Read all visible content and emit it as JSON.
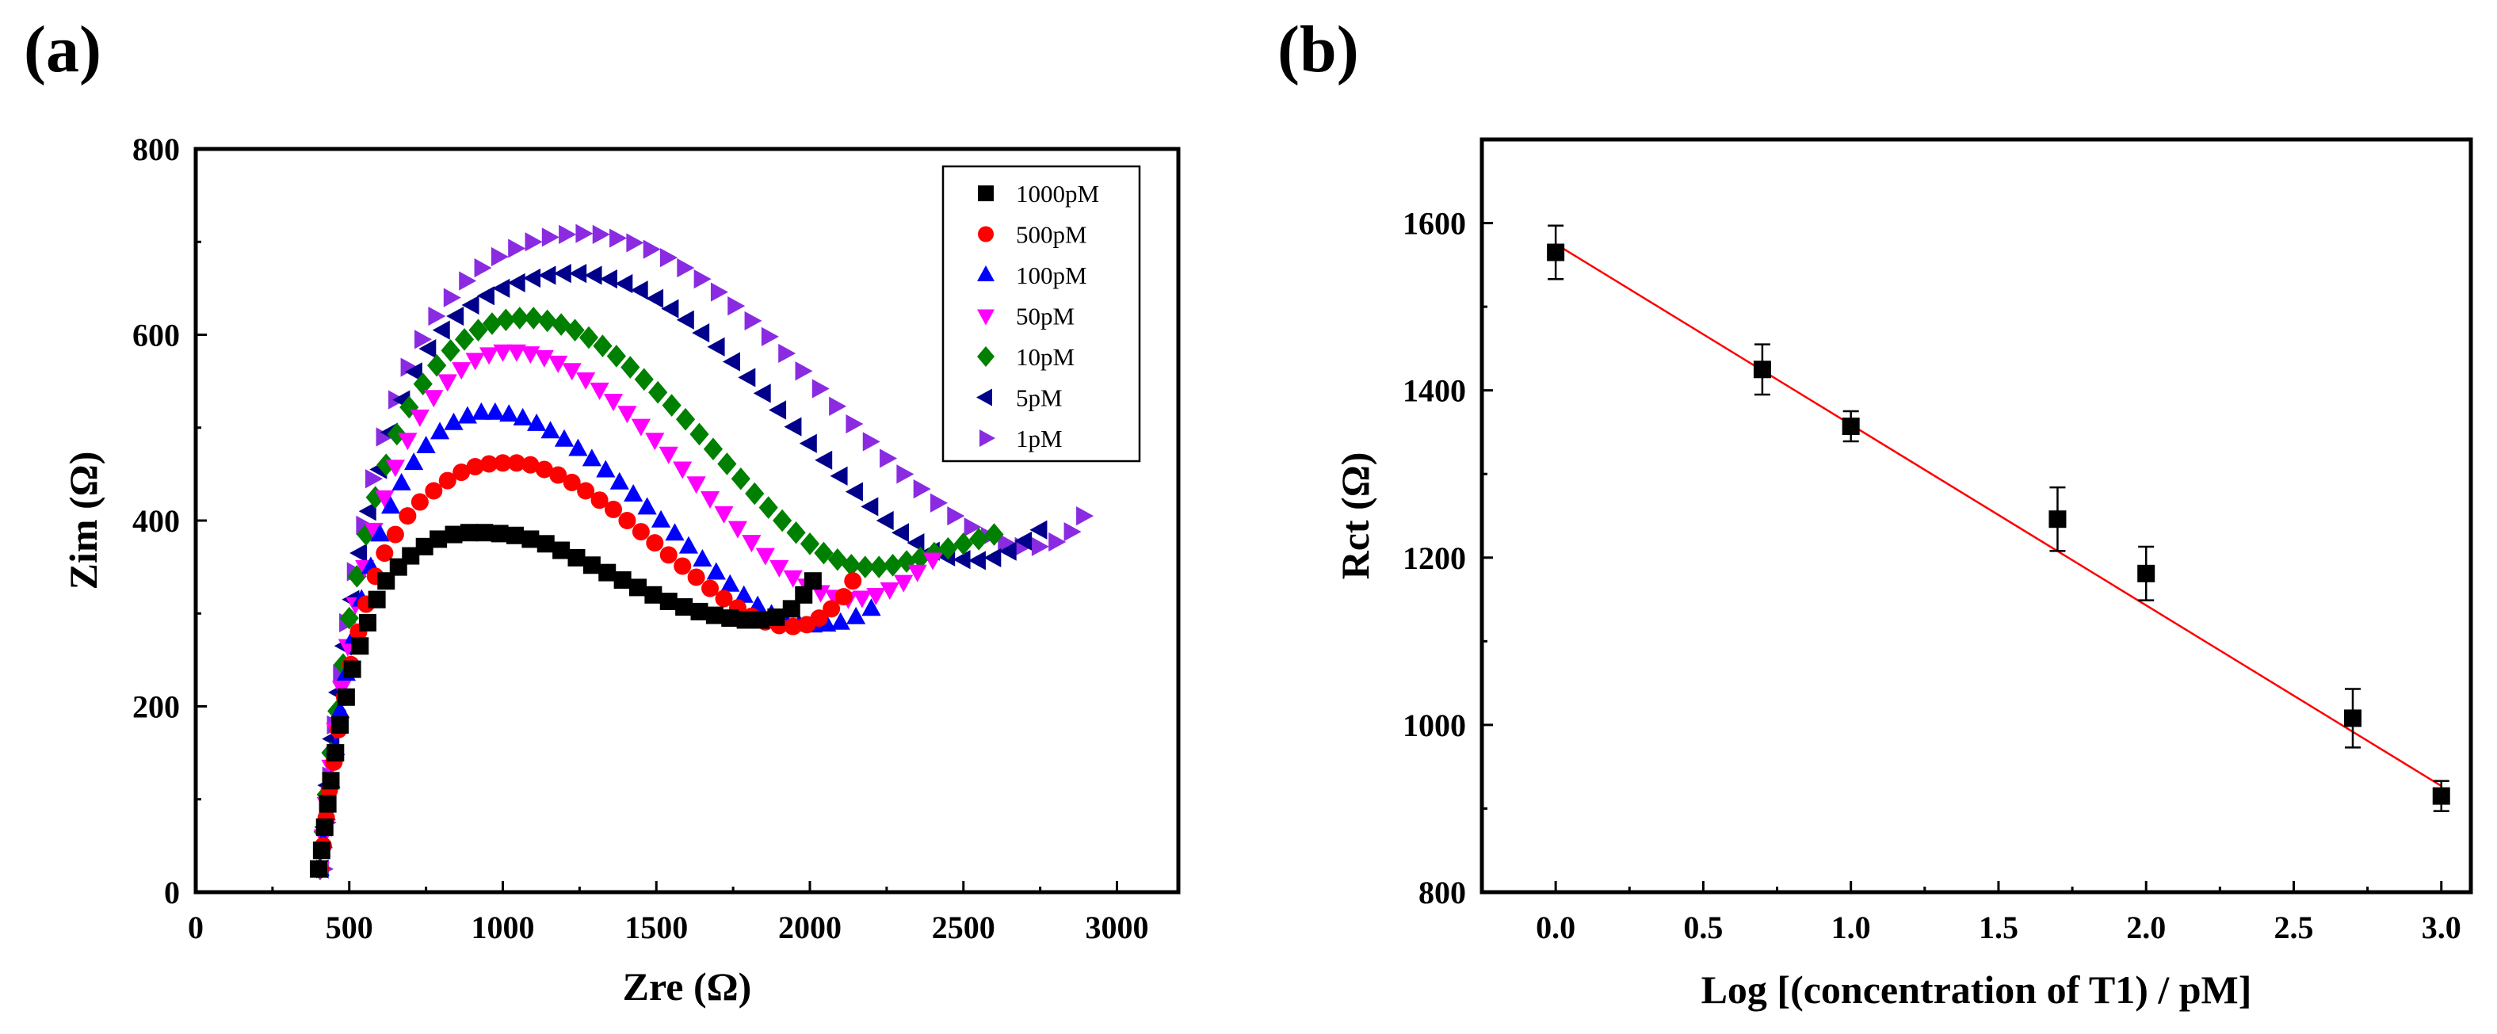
{
  "chart_data": [
    {
      "panel_label": "(a)",
      "type": "scatter",
      "title": "",
      "xlabel": "Zre (Ω)",
      "ylabel": "Zim (Ω)",
      "xlim": [
        0,
        3200
      ],
      "ylim": [
        0,
        800
      ],
      "xticks": [
        0,
        500,
        1000,
        1500,
        2000,
        2500,
        3000
      ],
      "yticks": [
        0,
        200,
        400,
        600,
        800
      ],
      "grid": false,
      "legend_position": "top-right",
      "series": [
        {
          "name": "1000pM",
          "color": "#000000",
          "marker": "square",
          "x": [
            400,
            410,
            420,
            430,
            440,
            455,
            470,
            490,
            510,
            535,
            560,
            590,
            620,
            660,
            700,
            745,
            790,
            840,
            890,
            940,
            990,
            1040,
            1090,
            1140,
            1190,
            1240,
            1290,
            1340,
            1390,
            1440,
            1490,
            1540,
            1590,
            1640,
            1690,
            1740,
            1790,
            1840,
            1890,
            1940,
            1980,
            2010
          ],
          "y": [
            25,
            45,
            70,
            95,
            120,
            150,
            180,
            210,
            240,
            265,
            290,
            315,
            335,
            350,
            362,
            372,
            380,
            385,
            387,
            387,
            386,
            384,
            380,
            375,
            368,
            360,
            352,
            344,
            336,
            328,
            320,
            313,
            307,
            302,
            298,
            295,
            293,
            293,
            296,
            305,
            320,
            335
          ]
        },
        {
          "name": "500pM",
          "color": "#ff0000",
          "marker": "circle",
          "x": [
            405,
            415,
            425,
            435,
            450,
            465,
            485,
            505,
            530,
            555,
            585,
            615,
            650,
            690,
            730,
            775,
            820,
            865,
            910,
            955,
            1000,
            1045,
            1090,
            1135,
            1180,
            1225,
            1270,
            1315,
            1360,
            1405,
            1450,
            1495,
            1540,
            1585,
            1630,
            1675,
            1720,
            1765,
            1810,
            1855,
            1900,
            1945,
            1990,
            2030,
            2070,
            2110,
            2140
          ],
          "y": [
            25,
            50,
            80,
            110,
            140,
            175,
            210,
            245,
            280,
            310,
            340,
            365,
            385,
            405,
            420,
            432,
            443,
            452,
            458,
            461,
            462,
            462,
            460,
            455,
            449,
            441,
            432,
            422,
            412,
            400,
            388,
            376,
            363,
            351,
            339,
            327,
            316,
            306,
            297,
            291,
            287,
            286,
            288,
            295,
            305,
            318,
            335
          ]
        },
        {
          "name": "100pM",
          "color": "#0000ff",
          "marker": "triangle-up",
          "x": [
            405,
            415,
            425,
            440,
            455,
            470,
            490,
            515,
            540,
            570,
            600,
            635,
            670,
            710,
            750,
            795,
            840,
            885,
            930,
            975,
            1020,
            1065,
            1110,
            1155,
            1200,
            1245,
            1290,
            1335,
            1380,
            1425,
            1470,
            1515,
            1560,
            1605,
            1650,
            1695,
            1740,
            1785,
            1830,
            1875,
            1920,
            1965,
            2010,
            2055,
            2100,
            2150,
            2200
          ],
          "y": [
            25,
            55,
            85,
            120,
            155,
            195,
            235,
            275,
            315,
            350,
            385,
            415,
            440,
            462,
            480,
            495,
            505,
            512,
            516,
            516,
            514,
            510,
            504,
            496,
            487,
            477,
            466,
            454,
            441,
            428,
            414,
            400,
            386,
            372,
            358,
            344,
            331,
            319,
            308,
            299,
            292,
            288,
            287,
            288,
            290,
            296,
            305
          ]
        },
        {
          "name": "50pM",
          "color": "#ff00ff",
          "marker": "triangle-down",
          "x": [
            405,
            415,
            425,
            440,
            455,
            475,
            495,
            520,
            550,
            580,
            615,
            650,
            690,
            730,
            775,
            820,
            865,
            910,
            955,
            1000,
            1045,
            1090,
            1135,
            1180,
            1225,
            1270,
            1315,
            1360,
            1405,
            1450,
            1495,
            1540,
            1585,
            1630,
            1675,
            1720,
            1765,
            1810,
            1855,
            1900,
            1945,
            1990,
            2035,
            2080,
            2125,
            2170,
            2215,
            2260,
            2305,
            2350,
            2400
          ],
          "y": [
            25,
            60,
            95,
            135,
            175,
            220,
            265,
            310,
            350,
            390,
            425,
            458,
            487,
            512,
            533,
            550,
            563,
            573,
            579,
            582,
            582,
            580,
            576,
            570,
            562,
            552,
            541,
            529,
            516,
            502,
            487,
            472,
            456,
            440,
            424,
            408,
            392,
            377,
            363,
            350,
            339,
            330,
            323,
            318,
            316,
            317,
            320,
            326,
            334,
            345,
            358
          ]
        },
        {
          "name": "10pM",
          "color": "#008000",
          "marker": "diamond",
          "x": [
            405,
            415,
            425,
            440,
            460,
            480,
            500,
            525,
            555,
            585,
            620,
            655,
            695,
            740,
            785,
            830,
            875,
            920,
            965,
            1010,
            1055,
            1100,
            1145,
            1190,
            1235,
            1280,
            1325,
            1370,
            1415,
            1460,
            1505,
            1550,
            1595,
            1640,
            1685,
            1730,
            1775,
            1820,
            1865,
            1910,
            1955,
            2000,
            2045,
            2090,
            2135,
            2180,
            2225,
            2270,
            2315,
            2360,
            2405,
            2450,
            2500,
            2550,
            2600
          ],
          "y": [
            25,
            65,
            105,
            150,
            195,
            245,
            295,
            340,
            385,
            425,
            460,
            493,
            522,
            547,
            567,
            583,
            595,
            605,
            612,
            616,
            618,
            618,
            615,
            611,
            605,
            597,
            588,
            577,
            565,
            552,
            538,
            524,
            509,
            493,
            477,
            461,
            445,
            429,
            414,
            400,
            387,
            375,
            365,
            358,
            352,
            350,
            350,
            352,
            356,
            360,
            365,
            370,
            375,
            380,
            385
          ]
        },
        {
          "name": "5pM",
          "color": "#00008b",
          "marker": "triangle-left",
          "x": [
            410,
            420,
            430,
            445,
            465,
            485,
            510,
            535,
            565,
            600,
            635,
            675,
            715,
            760,
            805,
            850,
            900,
            950,
            1000,
            1050,
            1100,
            1150,
            1200,
            1250,
            1300,
            1350,
            1400,
            1450,
            1500,
            1550,
            1600,
            1650,
            1700,
            1750,
            1800,
            1850,
            1900,
            1950,
            2000,
            2050,
            2100,
            2150,
            2200,
            2250,
            2300,
            2350,
            2400,
            2450,
            2500,
            2550,
            2600,
            2650,
            2700,
            2750
          ],
          "y": [
            25,
            70,
            115,
            165,
            215,
            265,
            315,
            365,
            410,
            455,
            495,
            530,
            560,
            585,
            605,
            620,
            632,
            642,
            650,
            656,
            661,
            664,
            666,
            666,
            664,
            660,
            655,
            648,
            639,
            628,
            616,
            602,
            587,
            571,
            554,
            537,
            519,
            501,
            483,
            465,
            448,
            431,
            415,
            400,
            387,
            376,
            367,
            361,
            358,
            357,
            360,
            367,
            378,
            390
          ]
        },
        {
          "name": "1pM",
          "color": "#8a2be2",
          "marker": "triangle-right",
          "x": [
            415,
            425,
            435,
            450,
            470,
            490,
            515,
            545,
            575,
            610,
            650,
            690,
            735,
            780,
            830,
            880,
            930,
            985,
            1040,
            1095,
            1150,
            1205,
            1260,
            1315,
            1370,
            1425,
            1480,
            1535,
            1590,
            1645,
            1700,
            1755,
            1810,
            1865,
            1920,
            1975,
            2030,
            2085,
            2140,
            2195,
            2250,
            2305,
            2360,
            2415,
            2470,
            2525,
            2580,
            2635,
            2690,
            2745,
            2800,
            2850,
            2890
          ],
          "y": [
            25,
            75,
            125,
            180,
            235,
            290,
            345,
            395,
            445,
            490,
            530,
            565,
            595,
            620,
            640,
            658,
            672,
            684,
            693,
            700,
            705,
            708,
            709,
            708,
            704,
            699,
            692,
            683,
            672,
            660,
            646,
            631,
            615,
            598,
            580,
            561,
            542,
            523,
            504,
            485,
            467,
            450,
            434,
            419,
            405,
            393,
            383,
            376,
            372,
            372,
            377,
            388,
            405
          ]
        }
      ]
    },
    {
      "panel_label": "(b)",
      "type": "scatter",
      "title": "",
      "xlabel": "Log [(concentration of T1) / pM]",
      "ylabel": "Rct (Ω)",
      "xlim": [
        -0.25,
        3.1
      ],
      "ylim": [
        800,
        1700
      ],
      "xticks": [
        "0.0",
        "0.5",
        "1.0",
        "1.5",
        "2.0",
        "2.5",
        "3.0"
      ],
      "yticks": [
        "800",
        "1000",
        "1200",
        "1400",
        "1600"
      ],
      "grid": false,
      "series": [
        {
          "name": "data",
          "color": "#000000",
          "marker": "square",
          "x": [
            0,
            0.7,
            1.0,
            1.7,
            2.0,
            2.7,
            3.0
          ],
          "y": [
            1565,
            1425,
            1357,
            1246,
            1181,
            1008,
            915
          ],
          "yerr": [
            32,
            30,
            18,
            38,
            32,
            35,
            18
          ]
        },
        {
          "name": "linear fit",
          "type": "line",
          "color": "#ff0000",
          "x": [
            0,
            3.0
          ],
          "y": [
            1575,
            927
          ]
        }
      ]
    }
  ]
}
